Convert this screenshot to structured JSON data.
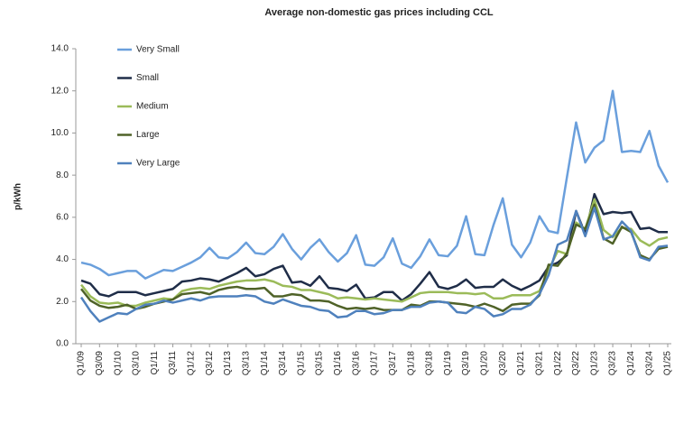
{
  "chart_data": {
    "type": "line",
    "title": "Average non-domestic gas prices including CCL",
    "y_label": "p/kWh",
    "categories": [
      "Q1/09",
      null,
      "Q3/09",
      null,
      "Q1/10",
      null,
      "Q3/10",
      null,
      "Q1/11",
      null,
      "Q3/11",
      null,
      "Q1/12",
      null,
      "Q3/12",
      null,
      "Q1/13",
      null,
      "Q3/13",
      null,
      "Q1/14",
      null,
      "Q3/14",
      null,
      "Q1/15",
      null,
      "Q3/15",
      null,
      "Q1/16",
      null,
      "Q3/16",
      null,
      "Q1/17",
      null,
      "Q3/17",
      null,
      "Q1/18",
      null,
      "Q3/18",
      null,
      "Q1/19",
      null,
      "Q3/19",
      null,
      "Q1/20",
      null,
      "Q3/20",
      null,
      "Q1/21",
      null,
      "Q3/21",
      null,
      "Q1/22",
      null,
      "Q3/22",
      null,
      "Q1/23",
      null,
      "Q3/23",
      null,
      "Q1/24",
      null,
      "Q3/24",
      null,
      "Q1/25"
    ],
    "series": [
      {
        "name": "Very Small",
        "color": "#6a9fdc",
        "values": [
          3.85,
          3.75,
          3.55,
          3.25,
          3.35,
          3.45,
          3.45,
          3.1,
          3.3,
          3.5,
          3.45,
          3.65,
          3.85,
          4.1,
          4.55,
          4.1,
          4.05,
          4.35,
          4.8,
          4.3,
          4.25,
          4.6,
          5.2,
          4.5,
          4.0,
          4.55,
          4.95,
          4.35,
          3.9,
          4.3,
          5.15,
          3.75,
          3.7,
          4.1,
          5.0,
          3.8,
          3.6,
          4.15,
          4.95,
          4.2,
          4.15,
          4.65,
          6.05,
          4.25,
          4.2,
          5.65,
          6.9,
          4.7,
          4.1,
          4.8,
          6.05,
          5.35,
          5.25,
          7.9,
          10.5,
          8.6,
          9.3,
          9.65,
          12.0,
          9.1,
          9.15,
          9.1,
          10.1,
          8.45,
          7.65
        ]
      },
      {
        "name": "Small",
        "color": "#1f2d48",
        "values": [
          3.0,
          2.85,
          2.35,
          2.25,
          2.45,
          2.45,
          2.45,
          2.3,
          2.4,
          2.5,
          2.6,
          2.95,
          3.0,
          3.1,
          3.05,
          2.95,
          3.15,
          3.35,
          3.6,
          3.2,
          3.3,
          3.55,
          3.7,
          2.9,
          2.95,
          2.75,
          3.2,
          2.65,
          2.6,
          2.5,
          2.8,
          2.15,
          2.2,
          2.45,
          2.45,
          2.05,
          2.35,
          2.85,
          3.4,
          2.7,
          2.6,
          2.75,
          3.05,
          2.65,
          2.7,
          2.7,
          3.05,
          2.75,
          2.55,
          2.75,
          3.0,
          3.65,
          3.85,
          4.2,
          6.3,
          5.2,
          7.1,
          6.15,
          6.25,
          6.2,
          6.25,
          5.45,
          5.5,
          5.3,
          5.3
        ]
      },
      {
        "name": "Medium",
        "color": "#9bbb59",
        "values": [
          2.8,
          2.25,
          1.95,
          1.9,
          1.95,
          1.8,
          1.8,
          1.95,
          2.05,
          2.15,
          2.1,
          2.5,
          2.6,
          2.65,
          2.6,
          2.75,
          2.85,
          2.95,
          3.0,
          3.0,
          3.05,
          2.95,
          2.75,
          2.7,
          2.55,
          2.55,
          2.45,
          2.35,
          2.15,
          2.2,
          2.15,
          2.1,
          2.15,
          2.1,
          2.05,
          2.0,
          2.2,
          2.4,
          2.45,
          2.45,
          2.45,
          2.4,
          2.4,
          2.35,
          2.4,
          2.15,
          2.15,
          2.3,
          2.3,
          2.3,
          2.5,
          3.5,
          4.4,
          4.25,
          5.75,
          5.45,
          6.85,
          5.4,
          5.05,
          5.5,
          5.45,
          4.9,
          4.65,
          4.95,
          5.05
        ]
      },
      {
        "name": "Large",
        "color": "#4f6228",
        "values": [
          2.6,
          2.05,
          1.8,
          1.7,
          1.75,
          1.85,
          1.65,
          1.75,
          1.9,
          2.0,
          2.1,
          2.35,
          2.4,
          2.45,
          2.35,
          2.55,
          2.65,
          2.7,
          2.6,
          2.6,
          2.65,
          2.25,
          2.25,
          2.35,
          2.3,
          2.05,
          2.05,
          2.0,
          1.8,
          1.65,
          1.7,
          1.65,
          1.7,
          1.6,
          1.6,
          1.6,
          1.85,
          1.8,
          2.0,
          2.0,
          1.95,
          1.9,
          1.85,
          1.75,
          1.9,
          1.75,
          1.55,
          1.85,
          1.9,
          1.9,
          2.3,
          3.75,
          3.7,
          4.3,
          5.65,
          5.45,
          6.6,
          5.0,
          4.75,
          5.55,
          5.3,
          4.2,
          4.0,
          4.5,
          4.6
        ]
      },
      {
        "name": "Very Large",
        "color": "#4f81bd",
        "values": [
          2.2,
          1.55,
          1.05,
          1.25,
          1.45,
          1.4,
          1.65,
          1.85,
          1.9,
          2.05,
          1.95,
          2.05,
          2.15,
          2.05,
          2.2,
          2.25,
          2.25,
          2.25,
          2.3,
          2.25,
          2.0,
          1.9,
          2.1,
          1.95,
          1.8,
          1.75,
          1.6,
          1.55,
          1.25,
          1.3,
          1.55,
          1.55,
          1.4,
          1.45,
          1.6,
          1.6,
          1.75,
          1.75,
          1.95,
          2.0,
          1.95,
          1.5,
          1.45,
          1.75,
          1.65,
          1.3,
          1.4,
          1.65,
          1.65,
          1.85,
          2.35,
          3.25,
          4.7,
          4.9,
          6.3,
          5.1,
          6.45,
          4.95,
          5.1,
          5.8,
          5.35,
          4.1,
          3.95,
          4.6,
          4.65
        ]
      }
    ],
    "ylim": [
      0,
      14
    ],
    "yticks": [
      {
        "value": 0,
        "label": "0.0"
      },
      {
        "value": 2,
        "label": "2.0"
      },
      {
        "value": 4,
        "label": "4.0"
      },
      {
        "value": 6,
        "label": "6.0"
      },
      {
        "value": 8,
        "label": "8.0"
      },
      {
        "value": 10,
        "label": "10.0"
      },
      {
        "value": 12,
        "label": "12.0"
      },
      {
        "value": 14,
        "label": "14.0"
      }
    ],
    "grid": false,
    "legend": "upper left"
  }
}
